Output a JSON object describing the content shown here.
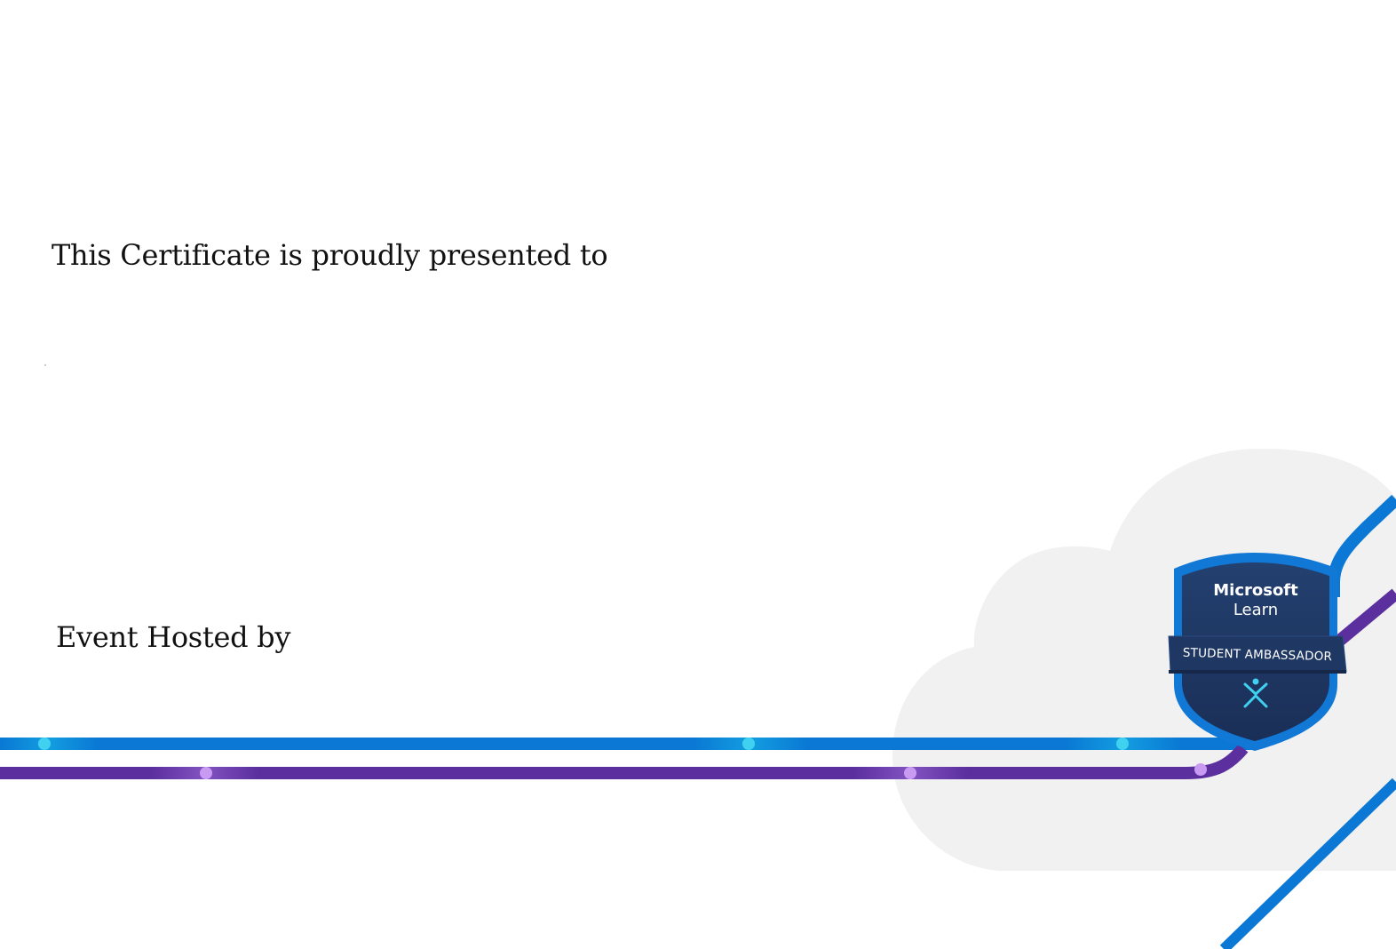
{
  "certificate": {
    "presented_to_text": "This Certificate is proudly presented to",
    "hosted_by_text": "Event Hosted by"
  },
  "badge": {
    "title_line1": "Microsoft",
    "title_line2": "Learn",
    "ribbon_text": "STUDENT AMBASSADOR",
    "icon": "ambassador-figure-icon"
  },
  "colors": {
    "blue_line": "#0a78d4",
    "purple_line": "#5b2f9e",
    "cloud": "#f1f1f1",
    "badge_dark": "#1f3763",
    "badge_border": "#1278d6",
    "accent_cyan": "#40d0f0"
  }
}
